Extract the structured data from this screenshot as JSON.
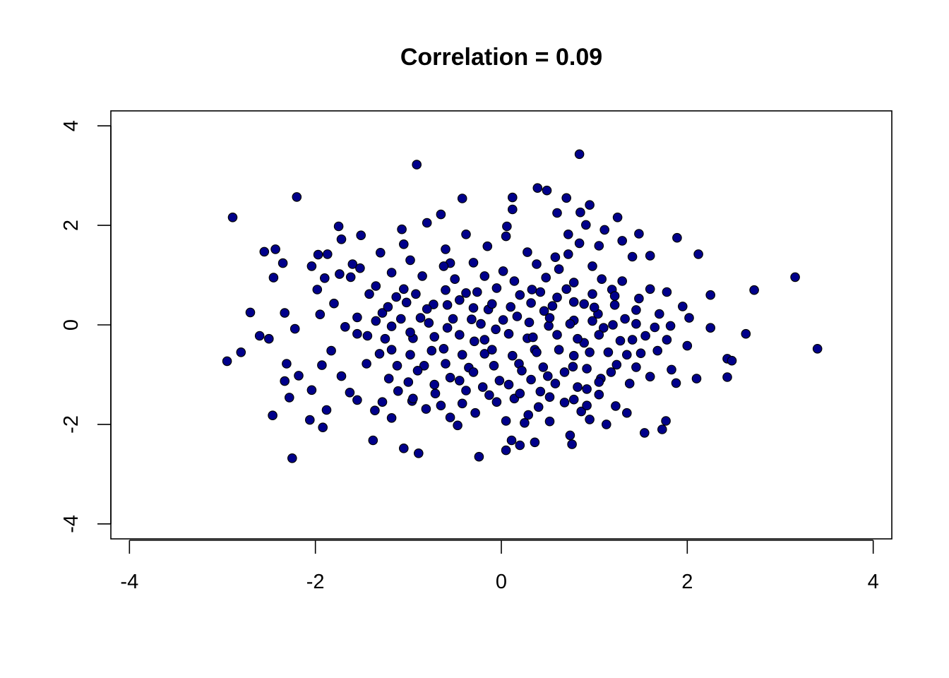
{
  "chart_data": {
    "type": "scatter",
    "title": "Correlation = 0.09",
    "xlabel": "",
    "ylabel": "",
    "xlim": [
      -4.2,
      4.2
    ],
    "ylim": [
      -4.3,
      4.3
    ],
    "x_ticks": [
      -4,
      -2,
      0,
      2,
      4
    ],
    "y_ticks": [
      -4,
      -2,
      0,
      2,
      4
    ],
    "x_tick_labels": [
      "-4",
      "-2",
      "0",
      "2",
      "4"
    ],
    "y_tick_labels": [
      "-4",
      "-2",
      "0",
      "2",
      "4"
    ],
    "grid": false,
    "legend": "none",
    "point_fill": "#00008B",
    "point_stroke": "#000000",
    "points": [
      [
        0.84,
        3.43
      ],
      [
        -0.91,
        3.22
      ],
      [
        0.39,
        2.75
      ],
      [
        0.49,
        2.7
      ],
      [
        0.12,
        2.56
      ],
      [
        0.7,
        2.55
      ],
      [
        -0.42,
        2.54
      ],
      [
        -2.2,
        2.57
      ],
      [
        0.95,
        2.41
      ],
      [
        0.12,
        2.32
      ],
      [
        -0.65,
        2.22
      ],
      [
        0.85,
        2.26
      ],
      [
        0.6,
        2.25
      ],
      [
        -2.89,
        2.16
      ],
      [
        1.25,
        2.16
      ],
      [
        0.91,
        2.01
      ],
      [
        -0.8,
        2.05
      ],
      [
        -1.75,
        1.98
      ],
      [
        0.06,
        1.98
      ],
      [
        1.11,
        1.91
      ],
      [
        -1.07,
        1.92
      ],
      [
        0.72,
        1.82
      ],
      [
        1.48,
        1.83
      ],
      [
        -1.51,
        1.8
      ],
      [
        -1.72,
        1.72
      ],
      [
        1.89,
        1.75
      ],
      [
        1.3,
        1.69
      ],
      [
        -0.38,
        1.82
      ],
      [
        0.84,
        1.64
      ],
      [
        1.05,
        1.59
      ],
      [
        -2.55,
        1.47
      ],
      [
        -2.43,
        1.52
      ],
      [
        -1.97,
        1.41
      ],
      [
        -1.87,
        1.42
      ],
      [
        2.12,
        1.42
      ],
      [
        -2.35,
        1.24
      ],
      [
        -1.6,
        1.22
      ],
      [
        -0.55,
        1.24
      ],
      [
        0.58,
        1.36
      ],
      [
        1.41,
        1.37
      ],
      [
        1.6,
        1.39
      ],
      [
        -2.04,
        1.18
      ],
      [
        -1.74,
        1.02
      ],
      [
        -1.52,
        1.14
      ],
      [
        -2.45,
        0.95
      ],
      [
        -1.9,
        0.94
      ],
      [
        -1.62,
        0.96
      ],
      [
        3.16,
        0.96
      ],
      [
        -1.35,
        0.78
      ],
      [
        2.72,
        0.7
      ],
      [
        -1.98,
        0.71
      ],
      [
        2.25,
        0.6
      ],
      [
        -0.26,
        0.66
      ],
      [
        0.33,
        0.71
      ],
      [
        1.19,
        0.71
      ],
      [
        1.78,
        0.66
      ],
      [
        -1.13,
        0.56
      ],
      [
        -0.45,
        0.5
      ],
      [
        0.6,
        0.55
      ],
      [
        1.48,
        0.53
      ],
      [
        -1.8,
        0.43
      ],
      [
        -0.73,
        0.41
      ],
      [
        0.89,
        0.42
      ],
      [
        1.95,
        0.37
      ],
      [
        -1.28,
        0.24
      ],
      [
        -0.14,
        0.31
      ],
      [
        0.46,
        0.28
      ],
      [
        1.04,
        0.22
      ],
      [
        -2.7,
        0.25
      ],
      [
        -2.33,
        0.24
      ],
      [
        -1.95,
        0.21
      ],
      [
        -1.55,
        0.15
      ],
      [
        -0.87,
        0.14
      ],
      [
        -0.32,
        0.11
      ],
      [
        0.17,
        0.17
      ],
      [
        0.78,
        0.09
      ],
      [
        1.33,
        0.12
      ],
      [
        2.02,
        0.14
      ],
      [
        -2.22,
        -0.08
      ],
      [
        -1.68,
        -0.04
      ],
      [
        -1.18,
        -0.03
      ],
      [
        -0.58,
        -0.06
      ],
      [
        -0.06,
        -0.09
      ],
      [
        0.51,
        -0.02
      ],
      [
        1.1,
        -0.06
      ],
      [
        1.65,
        -0.05
      ],
      [
        2.25,
        -0.06
      ],
      [
        2.63,
        -0.18
      ],
      [
        -2.6,
        -0.22
      ],
      [
        -2.5,
        -0.28
      ],
      [
        -1.44,
        -0.22
      ],
      [
        -0.95,
        -0.27
      ],
      [
        -0.29,
        -0.33
      ],
      [
        0.28,
        -0.27
      ],
      [
        0.89,
        -0.36
      ],
      [
        1.41,
        -0.3
      ],
      [
        2.0,
        -0.42
      ],
      [
        3.4,
        -0.48
      ],
      [
        -2.8,
        -0.55
      ],
      [
        -1.83,
        -0.52
      ],
      [
        -1.31,
        -0.58
      ],
      [
        -0.75,
        -0.52
      ],
      [
        -0.18,
        -0.58
      ],
      [
        0.36,
        -0.5
      ],
      [
        0.95,
        -0.55
      ],
      [
        1.5,
        -0.57
      ],
      [
        -2.95,
        -0.73
      ],
      [
        -2.31,
        -0.78
      ],
      [
        -1.93,
        -0.81
      ],
      [
        -1.45,
        -0.78
      ],
      [
        -0.83,
        -0.82
      ],
      [
        -0.35,
        -0.86
      ],
      [
        0.19,
        -0.78
      ],
      [
        0.77,
        -0.84
      ],
      [
        1.24,
        -0.8
      ],
      [
        1.83,
        -0.9
      ],
      [
        2.43,
        -0.68
      ],
      [
        2.48,
        -0.72
      ],
      [
        -2.18,
        -1.02
      ],
      [
        -1.72,
        -1.03
      ],
      [
        -1.21,
        -1.08
      ],
      [
        -0.55,
        -1.06
      ],
      [
        -0.02,
        -1.12
      ],
      [
        0.5,
        -1.03
      ],
      [
        1.07,
        -1.08
      ],
      [
        1.6,
        -1.04
      ],
      [
        2.1,
        -1.08
      ],
      [
        2.43,
        -1.05
      ],
      [
        -2.33,
        -1.13
      ],
      [
        -2.04,
        -1.31
      ],
      [
        -1.63,
        -1.36
      ],
      [
        -1.11,
        -1.33
      ],
      [
        -0.71,
        -1.38
      ],
      [
        -0.13,
        -1.41
      ],
      [
        0.42,
        -1.34
      ],
      [
        0.92,
        -1.29
      ],
      [
        1.38,
        -1.18
      ],
      [
        1.88,
        -1.17
      ],
      [
        -2.28,
        -1.46
      ],
      [
        -1.55,
        -1.51
      ],
      [
        -0.96,
        -1.53
      ],
      [
        -0.42,
        -1.58
      ],
      [
        0.14,
        -1.48
      ],
      [
        0.68,
        -1.56
      ],
      [
        1.23,
        -1.63
      ],
      [
        -1.88,
        -1.71
      ],
      [
        -1.36,
        -1.72
      ],
      [
        -0.81,
        -1.69
      ],
      [
        -0.28,
        -1.77
      ],
      [
        0.29,
        -1.81
      ],
      [
        0.86,
        -1.74
      ],
      [
        1.35,
        -1.77
      ],
      [
        -2.46,
        -1.82
      ],
      [
        -2.06,
        -1.91
      ],
      [
        -1.18,
        -1.87
      ],
      [
        -0.55,
        -1.86
      ],
      [
        0.05,
        -1.93
      ],
      [
        0.52,
        -1.94
      ],
      [
        0.95,
        -1.9
      ],
      [
        1.77,
        -1.93
      ],
      [
        -1.92,
        -2.06
      ],
      [
        -0.47,
        -2.02
      ],
      [
        0.25,
        -1.97
      ],
      [
        1.13,
        -2.0
      ],
      [
        1.73,
        -2.1
      ],
      [
        1.54,
        -2.17
      ],
      [
        -1.38,
        -2.32
      ],
      [
        0.11,
        -2.32
      ],
      [
        0.74,
        -2.22
      ],
      [
        0.36,
        -2.36
      ],
      [
        -1.05,
        -2.48
      ],
      [
        -0.89,
        -2.58
      ],
      [
        0.2,
        -2.42
      ],
      [
        0.76,
        -2.4
      ],
      [
        0.05,
        -2.52
      ],
      [
        -2.25,
        -2.68
      ],
      [
        -0.24,
        -2.65
      ],
      [
        -1.05,
        1.62
      ],
      [
        -0.6,
        1.52
      ],
      [
        -0.15,
        1.58
      ],
      [
        0.28,
        1.46
      ],
      [
        0.72,
        1.42
      ],
      [
        -1.3,
        1.45
      ],
      [
        0.05,
        1.78
      ],
      [
        -0.98,
        1.3
      ],
      [
        -0.62,
        1.18
      ],
      [
        -0.3,
        1.25
      ],
      [
        0.02,
        1.08
      ],
      [
        0.38,
        1.22
      ],
      [
        0.62,
        1.12
      ],
      [
        0.98,
        1.18
      ],
      [
        -1.18,
        1.05
      ],
      [
        -0.85,
        0.98
      ],
      [
        -0.5,
        0.92
      ],
      [
        -0.18,
        0.98
      ],
      [
        0.14,
        0.88
      ],
      [
        0.48,
        0.95
      ],
      [
        0.78,
        0.85
      ],
      [
        1.08,
        0.92
      ],
      [
        1.3,
        0.88
      ],
      [
        -1.42,
        0.62
      ],
      [
        -1.05,
        0.72
      ],
      [
        -0.92,
        0.62
      ],
      [
        -0.6,
        0.7
      ],
      [
        -0.38,
        0.64
      ],
      [
        -0.05,
        0.74
      ],
      [
        0.2,
        0.6
      ],
      [
        0.42,
        0.66
      ],
      [
        0.7,
        0.72
      ],
      [
        0.98,
        0.62
      ],
      [
        1.22,
        0.58
      ],
      [
        1.6,
        0.72
      ],
      [
        -1.22,
        0.36
      ],
      [
        -1.02,
        0.45
      ],
      [
        -0.8,
        0.32
      ],
      [
        -0.58,
        0.4
      ],
      [
        -0.3,
        0.34
      ],
      [
        -0.1,
        0.42
      ],
      [
        0.1,
        0.36
      ],
      [
        0.32,
        0.44
      ],
      [
        0.55,
        0.38
      ],
      [
        0.78,
        0.46
      ],
      [
        1.0,
        0.35
      ],
      [
        1.22,
        0.4
      ],
      [
        1.45,
        0.3
      ],
      [
        1.7,
        0.22
      ],
      [
        -1.35,
        0.08
      ],
      [
        -1.08,
        0.12
      ],
      [
        -0.78,
        0.04
      ],
      [
        -0.52,
        0.12
      ],
      [
        -0.22,
        0.02
      ],
      [
        0.02,
        0.1
      ],
      [
        0.3,
        0.05
      ],
      [
        0.52,
        0.14
      ],
      [
        0.74,
        0.02
      ],
      [
        0.98,
        0.08
      ],
      [
        1.2,
        0.0
      ],
      [
        1.45,
        0.02
      ],
      [
        1.82,
        -0.02
      ],
      [
        -1.55,
        -0.18
      ],
      [
        -1.25,
        -0.28
      ],
      [
        -0.98,
        -0.15
      ],
      [
        -0.72,
        -0.24
      ],
      [
        -0.45,
        -0.2
      ],
      [
        -0.18,
        -0.3
      ],
      [
        0.08,
        -0.18
      ],
      [
        0.34,
        -0.25
      ],
      [
        0.6,
        -0.2
      ],
      [
        0.82,
        -0.28
      ],
      [
        1.05,
        -0.2
      ],
      [
        1.28,
        -0.32
      ],
      [
        1.55,
        -0.22
      ],
      [
        1.78,
        -0.3
      ],
      [
        -1.18,
        -0.5
      ],
      [
        -0.98,
        -0.6
      ],
      [
        -0.62,
        -0.48
      ],
      [
        -0.42,
        -0.6
      ],
      [
        -0.1,
        -0.5
      ],
      [
        0.12,
        -0.62
      ],
      [
        0.38,
        -0.55
      ],
      [
        0.62,
        -0.5
      ],
      [
        0.78,
        -0.62
      ],
      [
        1.15,
        -0.55
      ],
      [
        1.35,
        -0.6
      ],
      [
        1.68,
        -0.52
      ],
      [
        -1.12,
        -0.82
      ],
      [
        -0.9,
        -0.92
      ],
      [
        -0.6,
        -0.78
      ],
      [
        -0.3,
        -0.95
      ],
      [
        -0.08,
        -0.82
      ],
      [
        0.22,
        -0.92
      ],
      [
        0.45,
        -0.85
      ],
      [
        0.68,
        -0.95
      ],
      [
        0.92,
        -0.88
      ],
      [
        1.18,
        -0.95
      ],
      [
        1.45,
        -0.85
      ],
      [
        -1.0,
        -1.15
      ],
      [
        -0.72,
        -1.2
      ],
      [
        -0.45,
        -1.12
      ],
      [
        -0.2,
        -1.25
      ],
      [
        0.08,
        -1.2
      ],
      [
        0.32,
        -1.1
      ],
      [
        0.58,
        -1.18
      ],
      [
        0.82,
        -1.25
      ],
      [
        1.05,
        -1.15
      ],
      [
        -0.95,
        -1.48
      ],
      [
        -0.38,
        -1.32
      ],
      [
        -0.05,
        -1.55
      ],
      [
        0.2,
        -1.38
      ],
      [
        0.52,
        -1.45
      ],
      [
        0.78,
        -1.5
      ],
      [
        -0.65,
        -1.62
      ],
      [
        0.4,
        -1.65
      ],
      [
        0.92,
        -1.62
      ],
      [
        -1.28,
        -1.55
      ],
      [
        1.05,
        -1.4
      ]
    ]
  }
}
